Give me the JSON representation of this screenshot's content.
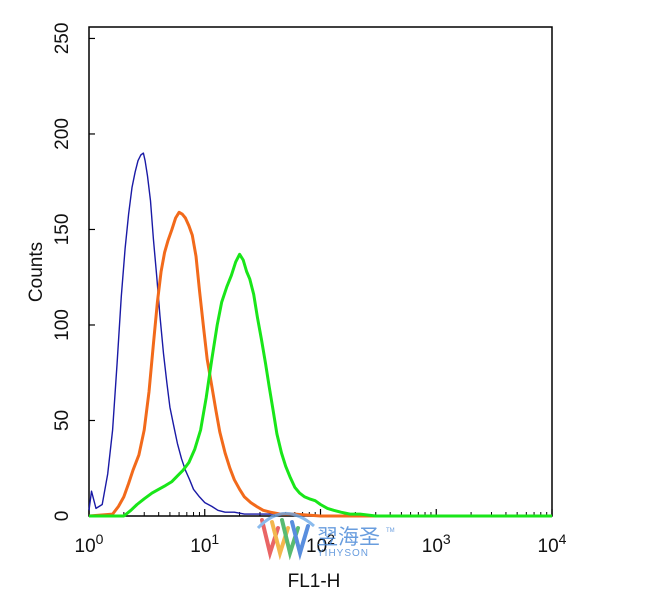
{
  "chart_data": {
    "type": "line",
    "title": "",
    "xlabel": "FL1-H",
    "ylabel": "Counts",
    "x_scale": "log",
    "xlim": [
      1,
      10000
    ],
    "ylim": [
      0,
      256
    ],
    "x_ticks": [
      {
        "value": 1,
        "base": "10",
        "exp": "0"
      },
      {
        "value": 10,
        "base": "10",
        "exp": "1"
      },
      {
        "value": 100,
        "base": "10",
        "exp": "2"
      },
      {
        "value": 1000,
        "base": "10",
        "exp": "3"
      },
      {
        "value": 10000,
        "base": "10",
        "exp": "4"
      }
    ],
    "y_ticks": [
      0,
      50,
      100,
      150,
      200,
      250
    ],
    "grid": false,
    "legend": "none",
    "series": [
      {
        "color": "#1a1aa6",
        "x": [
          1.0,
          1.05,
          1.15,
          1.3,
          1.45,
          1.6,
          1.75,
          1.9,
          2.05,
          2.2,
          2.35,
          2.5,
          2.65,
          2.8,
          2.95,
          3.05,
          3.2,
          3.4,
          3.6,
          3.85,
          4.1,
          4.4,
          4.7,
          5.0,
          5.4,
          5.8,
          6.3,
          6.8,
          7.4,
          8.0,
          9.0,
          10.0,
          11.5,
          13.0,
          15.0,
          18.0,
          22.0,
          27.0,
          35.0,
          50.0,
          80.0,
          150.0,
          10000.0
        ],
        "y": [
          3,
          13,
          4,
          6,
          22,
          45,
          80,
          115,
          140,
          158,
          172,
          180,
          186,
          189,
          190,
          186,
          178,
          165,
          145,
          125,
          105,
          85,
          70,
          57,
          47,
          38,
          30,
          24,
          19,
          14,
          10,
          7,
          5,
          3,
          2,
          2,
          1,
          1,
          1,
          1,
          0,
          0,
          0
        ]
      },
      {
        "color": "#f26a1b",
        "x": [
          1.0,
          1.6,
          1.8,
          2.0,
          2.2,
          2.4,
          2.7,
          3.0,
          3.3,
          3.6,
          3.9,
          4.2,
          4.5,
          4.8,
          5.2,
          5.6,
          6.0,
          6.4,
          6.8,
          7.3,
          7.8,
          8.4,
          9.0,
          9.8,
          10.5,
          11.5,
          12.5,
          13.5,
          15.0,
          16.5,
          18.0,
          20.0,
          22.0,
          25.0,
          28.0,
          32.0,
          37.0,
          45.0,
          60.0,
          100.0,
          10000.0
        ],
        "y": [
          0,
          1,
          5,
          10,
          17,
          24,
          32,
          45,
          65,
          90,
          112,
          128,
          138,
          144,
          150,
          156,
          159,
          158,
          156,
          152,
          147,
          136,
          118,
          98,
          82,
          68,
          55,
          44,
          33,
          25,
          19,
          14,
          10,
          7,
          5,
          3,
          2,
          1,
          1,
          0,
          0
        ]
      },
      {
        "color": "#19e619",
        "x": [
          1.0,
          2.0,
          2.3,
          2.6,
          3.0,
          3.5,
          4.0,
          4.6,
          5.2,
          5.8,
          6.5,
          7.3,
          8.2,
          9.2,
          10.3,
          11.5,
          12.8,
          14.0,
          15.5,
          17.0,
          18.5,
          20.0,
          21.5,
          23.0,
          24.5,
          26.5,
          28.5,
          31.0,
          33.5,
          36.0,
          39.0,
          42.0,
          46.0,
          50.0,
          55.0,
          60.0,
          66.0,
          73.0,
          80.0,
          90.0,
          100.0,
          115.0,
          130.0,
          150.0,
          180.0,
          220.0,
          300.0,
          10000.0
        ],
        "y": [
          0,
          0,
          3,
          6,
          9,
          12,
          14,
          16,
          18,
          21,
          24,
          28,
          35,
          45,
          62,
          82,
          100,
          112,
          120,
          126,
          133,
          137,
          134,
          128,
          124,
          116,
          104,
          92,
          80,
          68,
          55,
          43,
          33,
          26,
          20,
          15,
          12,
          10,
          9,
          8,
          6,
          4,
          3,
          2,
          1,
          1,
          0,
          0
        ]
      }
    ]
  },
  "watermark": {
    "cn_text": "翌海圣",
    "en_text": "YIHYSON",
    "tm": "TM"
  }
}
